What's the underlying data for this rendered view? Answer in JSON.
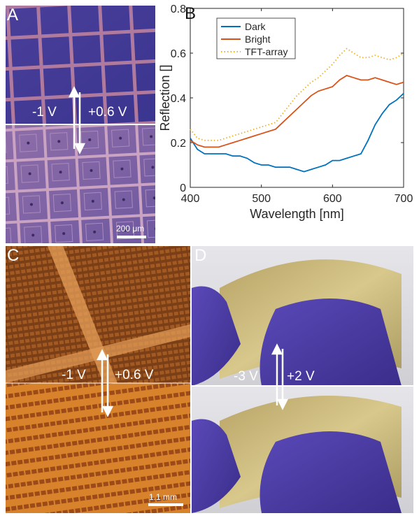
{
  "panels": {
    "a": {
      "label": "A",
      "voltage_left": "-1 V",
      "voltage_right": "+0.6 V",
      "scale_bar": "200 μm"
    },
    "b": {
      "label": "B"
    },
    "c": {
      "label": "C",
      "voltage_left": "-1 V",
      "voltage_right": "+0.6 V",
      "scale_bar": "1.1 mm"
    },
    "d": {
      "label": "D",
      "voltage_left": "-3 V",
      "voltage_right": "+2 V"
    }
  },
  "colors": {
    "dark": "#0072BD",
    "bright": "#D95319",
    "tft": "#EDB120"
  },
  "chart_data": {
    "type": "line",
    "xlabel": "Wavelength [nm]",
    "ylabel": "Reflection []",
    "xlim": [
      400,
      700
    ],
    "ylim": [
      0,
      0.8
    ],
    "xticks": [
      400,
      500,
      600,
      700
    ],
    "yticks": [
      0,
      0.2,
      0.4,
      0.6,
      0.8
    ],
    "grid": false,
    "legend_position": "top-left",
    "series": [
      {
        "name": "Dark",
        "color": "#0072BD",
        "style": "solid",
        "x": [
          400,
          410,
          420,
          430,
          440,
          450,
          460,
          470,
          480,
          490,
          500,
          510,
          520,
          530,
          540,
          550,
          560,
          570,
          580,
          590,
          600,
          610,
          620,
          630,
          640,
          650,
          660,
          670,
          680,
          690,
          700
        ],
        "y": [
          0.22,
          0.17,
          0.15,
          0.15,
          0.15,
          0.15,
          0.14,
          0.14,
          0.13,
          0.11,
          0.1,
          0.1,
          0.09,
          0.09,
          0.09,
          0.08,
          0.07,
          0.08,
          0.09,
          0.1,
          0.12,
          0.12,
          0.13,
          0.14,
          0.15,
          0.21,
          0.28,
          0.33,
          0.37,
          0.39,
          0.42
        ]
      },
      {
        "name": "Bright",
        "color": "#D95319",
        "style": "solid",
        "x": [
          400,
          410,
          420,
          430,
          440,
          450,
          460,
          470,
          480,
          490,
          500,
          510,
          520,
          530,
          540,
          550,
          560,
          570,
          580,
          590,
          600,
          610,
          620,
          630,
          640,
          650,
          660,
          670,
          680,
          690,
          700
        ],
        "y": [
          0.21,
          0.19,
          0.18,
          0.18,
          0.18,
          0.19,
          0.2,
          0.21,
          0.22,
          0.23,
          0.24,
          0.25,
          0.26,
          0.29,
          0.32,
          0.35,
          0.38,
          0.41,
          0.43,
          0.44,
          0.45,
          0.48,
          0.5,
          0.49,
          0.48,
          0.48,
          0.49,
          0.48,
          0.47,
          0.46,
          0.47
        ]
      },
      {
        "name": "TFT-array",
        "color": "#EDB120",
        "style": "dotted",
        "x": [
          400,
          410,
          420,
          430,
          440,
          450,
          460,
          470,
          480,
          490,
          500,
          510,
          520,
          530,
          540,
          550,
          560,
          570,
          580,
          590,
          600,
          610,
          620,
          630,
          640,
          650,
          660,
          670,
          680,
          690,
          700
        ],
        "y": [
          0.26,
          0.22,
          0.21,
          0.21,
          0.21,
          0.22,
          0.23,
          0.24,
          0.25,
          0.26,
          0.27,
          0.28,
          0.29,
          0.33,
          0.37,
          0.41,
          0.44,
          0.47,
          0.49,
          0.52,
          0.55,
          0.59,
          0.62,
          0.6,
          0.58,
          0.58,
          0.59,
          0.58,
          0.57,
          0.58,
          0.6
        ]
      }
    ]
  }
}
